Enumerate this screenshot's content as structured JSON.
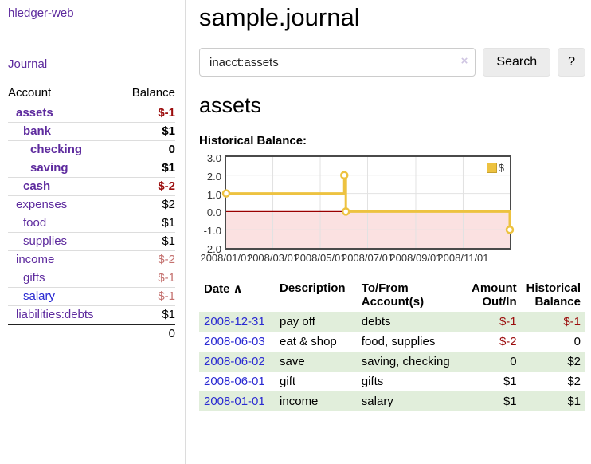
{
  "sidebar": {
    "app_title": "hledger-web",
    "nav": {
      "journal": "Journal"
    },
    "accounts": {
      "headers": {
        "account": "Account",
        "balance": "Balance"
      },
      "rows": [
        {
          "name": "assets",
          "depth": 1,
          "bold": true,
          "balance": "$-1"
        },
        {
          "name": "bank",
          "depth": 2,
          "bold": true,
          "balance": "$1"
        },
        {
          "name": "checking",
          "depth": 3,
          "bold": true,
          "balance": "0"
        },
        {
          "name": "saving",
          "depth": 3,
          "bold": true,
          "balance": "$1"
        },
        {
          "name": "cash",
          "depth": 2,
          "bold": true,
          "balance": "$-2"
        },
        {
          "name": "expenses",
          "depth": 1,
          "bold": false,
          "balance": "$2"
        },
        {
          "name": "food",
          "depth": 2,
          "bold": false,
          "balance": "$1"
        },
        {
          "name": "supplies",
          "depth": 2,
          "bold": false,
          "balance": "$1"
        },
        {
          "name": "income",
          "depth": 1,
          "bold": false,
          "balance": "$-2"
        },
        {
          "name": "gifts",
          "depth": 2,
          "bold": false,
          "balance": "$-1"
        },
        {
          "name": "salary",
          "depth": 2,
          "bold": false,
          "balance": "$-1",
          "blue": true
        },
        {
          "name": "liabilities:debts",
          "depth": 1,
          "bold": false,
          "balance": "$1"
        }
      ],
      "total": "0"
    }
  },
  "main": {
    "title": "sample.journal",
    "search": {
      "value": "inacct:assets",
      "clear": "×",
      "submit": "Search",
      "help": "?"
    },
    "account_heading": "assets",
    "chart_title": "Historical Balance:"
  },
  "chart_data": {
    "type": "line",
    "step": true,
    "title": "Historical Balance:",
    "legend": [
      {
        "label": "$",
        "color": "#edc240"
      }
    ],
    "series": [
      {
        "name": "$",
        "color": "#edc240",
        "points": [
          {
            "date": "2008-01-01",
            "value": 1
          },
          {
            "date": "2008-06-01",
            "value": 2
          },
          {
            "date": "2008-06-03",
            "value": 0
          },
          {
            "date": "2008-12-31",
            "value": -1
          }
        ]
      }
    ],
    "xlim": [
      "2008-01-01",
      "2008-12-31"
    ],
    "ylim": [
      -2,
      3
    ],
    "xticks": [
      {
        "date": "2008-01-01",
        "label": "2008/01/01"
      },
      {
        "date": "2008-03-01",
        "label": "2008/03/01"
      },
      {
        "date": "2008-05-01",
        "label": "2008/05/01"
      },
      {
        "date": "2008-07-01",
        "label": "2008/07/01"
      },
      {
        "date": "2008-09-01",
        "label": "2008/09/01"
      },
      {
        "date": "2008-11-01",
        "label": "2008/11/01"
      }
    ],
    "yticks": [
      {
        "v": 3,
        "label": "3.0"
      },
      {
        "v": 2,
        "label": "2.0"
      },
      {
        "v": 1,
        "label": "1.0"
      },
      {
        "v": 0,
        "label": "0.0"
      },
      {
        "v": -1,
        "label": "-1.0"
      },
      {
        "v": -2,
        "label": "-2.0"
      }
    ],
    "grid": true,
    "colors": {
      "line": "#edc240",
      "marker_fill": "#ffffff",
      "negative_region_fill": "#fbe1e1",
      "zero_line": "#9a0000",
      "gridline": "#e2e2e2",
      "plot_border": "#4a4a4a"
    },
    "legend_position": "top-right"
  },
  "register": {
    "headers": [
      "Date",
      "Description",
      "To/From Account(s)",
      "Amount Out/In",
      "Historical Balance"
    ],
    "sort_icon": "∧",
    "rows": [
      {
        "date": "2008-12-31",
        "description": "pay off",
        "accounts": "debts",
        "amount": "$-1",
        "balance": "$-1"
      },
      {
        "date": "2008-06-03",
        "description": "eat & shop",
        "accounts": "food, supplies",
        "amount": "$-2",
        "balance": "0"
      },
      {
        "date": "2008-06-02",
        "description": "save",
        "accounts": "saving, checking",
        "amount": "0",
        "balance": "$2"
      },
      {
        "date": "2008-06-01",
        "description": "gift",
        "accounts": "gifts",
        "amount": "$1",
        "balance": "$2"
      },
      {
        "date": "2008-01-01",
        "description": "income",
        "accounts": "salary",
        "amount": "$1",
        "balance": "$1"
      }
    ]
  },
  "colors": {
    "link_purple": "#5e2b9e",
    "link_blue": "#2a2ad2",
    "negative_strong": "#9b0c0c",
    "negative_soft": "#c4716f",
    "row_shade_green": "#e1eedb",
    "series_gold": "#edc240"
  }
}
